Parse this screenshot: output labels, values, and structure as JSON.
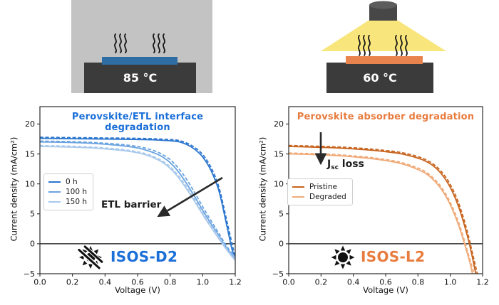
{
  "illustrations": {
    "dark_heat": {
      "temperature": "85 °C",
      "bg_color": "#c3c3c3",
      "plate_color": "#3b3b3b",
      "sample_color": "#2e6da4"
    },
    "light_soak": {
      "temperature": "60 °C",
      "plate_color": "#3b3b3b",
      "sample_color": "#e8834e",
      "cone_color": "#f8e57b",
      "lamp_color": "#474747",
      "lamp_top_color": "#5c5c5c"
    }
  },
  "chart_data": [
    {
      "type": "line",
      "title": "Perovskite/ETL interface degradation",
      "title_color": "#1b6fd8",
      "xlabel": "Voltage (V)",
      "ylabel": "Current density (mA/cm²)",
      "xlim": [
        0,
        1.2
      ],
      "ylim": [
        -5,
        22.9
      ],
      "grid": false,
      "zero_line": true,
      "xticks": [
        0,
        0.2,
        0.4,
        0.6,
        0.8,
        1.0,
        1.2
      ],
      "xtick_labels": [
        "0.0",
        "0.2",
        "0.4",
        "0.6",
        "0.8",
        "1.0",
        "1.2"
      ],
      "yticks": [
        20,
        15,
        10,
        5,
        0,
        -5
      ],
      "ytick_labels": [
        "20",
        "15",
        "10",
        "5",
        "0",
        "−5"
      ],
      "legend_position": "center-left",
      "legend": [
        {
          "label": "0 h",
          "color": "#2b76cf"
        },
        {
          "label": "100 h",
          "color": "#6aa3e0"
        },
        {
          "label": "150 h",
          "color": "#a9c9ec"
        }
      ],
      "annotation_text": "ETL barrier",
      "badge": {
        "label": "ISOS-D2",
        "icon": "crossed-sun-icon",
        "color": "#1b6fd8"
      },
      "series": [
        {
          "name": "0 h forward",
          "color": "#2b76cf",
          "style": "solid",
          "x": [
            0,
            0.1,
            0.2,
            0.3,
            0.4,
            0.5,
            0.6,
            0.7,
            0.8,
            0.85,
            0.9,
            0.95,
            1.0,
            1.05,
            1.1,
            1.15,
            1.18,
            1.2
          ],
          "y": [
            17.6,
            17.58,
            17.55,
            17.52,
            17.49,
            17.46,
            17.42,
            17.35,
            17.2,
            17.05,
            16.6,
            15.8,
            14.5,
            12.3,
            8.8,
            2.8,
            -0.9,
            -2.2
          ]
        },
        {
          "name": "0 h reverse",
          "color": "#2b76cf",
          "style": "dashed",
          "x": [
            0,
            0.1,
            0.2,
            0.3,
            0.4,
            0.5,
            0.6,
            0.7,
            0.8,
            0.85,
            0.9,
            0.95,
            1.0,
            1.05,
            1.1,
            1.15,
            1.19,
            1.2
          ],
          "y": [
            17.78,
            17.76,
            17.73,
            17.7,
            17.67,
            17.64,
            17.6,
            17.53,
            17.4,
            17.26,
            16.85,
            16.1,
            14.9,
            12.8,
            9.4,
            3.6,
            -1.1,
            -1.9
          ]
        },
        {
          "name": "100 h forward",
          "color": "#6aa3e0",
          "style": "solid",
          "x": [
            0,
            0.1,
            0.2,
            0.3,
            0.4,
            0.5,
            0.6,
            0.65,
            0.7,
            0.75,
            0.8,
            0.85,
            0.9,
            0.95,
            1.0,
            1.05,
            1.1,
            1.15,
            1.2
          ],
          "y": [
            17.0,
            16.96,
            16.9,
            16.8,
            16.62,
            16.38,
            16.0,
            15.65,
            15.2,
            14.55,
            13.55,
            12.05,
            10.1,
            7.9,
            5.6,
            3.4,
            1.3,
            -0.8,
            -2.5
          ]
        },
        {
          "name": "100 h reverse",
          "color": "#6aa3e0",
          "style": "dashed",
          "x": [
            0,
            0.1,
            0.2,
            0.3,
            0.4,
            0.5,
            0.6,
            0.65,
            0.7,
            0.75,
            0.8,
            0.85,
            0.9,
            0.95,
            1.0,
            1.05,
            1.1,
            1.15,
            1.2
          ],
          "y": [
            17.15,
            17.11,
            17.05,
            16.95,
            16.8,
            16.58,
            16.25,
            15.95,
            15.55,
            14.95,
            14.05,
            12.65,
            10.8,
            8.6,
            6.2,
            3.9,
            1.7,
            -0.5,
            -2.3
          ]
        },
        {
          "name": "150 h forward",
          "color": "#a9c9ec",
          "style": "solid",
          "x": [
            0,
            0.1,
            0.2,
            0.3,
            0.4,
            0.5,
            0.6,
            0.65,
            0.7,
            0.75,
            0.8,
            0.85,
            0.9,
            0.95,
            1.0,
            1.05,
            1.1,
            1.15,
            1.2
          ],
          "y": [
            16.25,
            16.2,
            16.13,
            16.02,
            15.85,
            15.6,
            15.2,
            14.85,
            14.35,
            13.65,
            12.6,
            11.1,
            9.2,
            7.1,
            4.9,
            2.8,
            0.8,
            -1.1,
            -2.8
          ]
        },
        {
          "name": "150 h reverse",
          "color": "#a9c9ec",
          "style": "dashed",
          "x": [
            0,
            0.1,
            0.2,
            0.3,
            0.4,
            0.5,
            0.6,
            0.65,
            0.7,
            0.75,
            0.8,
            0.85,
            0.9,
            0.95,
            1.0,
            1.05,
            1.1,
            1.15,
            1.2
          ],
          "y": [
            16.4,
            16.35,
            16.28,
            16.17,
            16.0,
            15.76,
            15.37,
            15.03,
            14.55,
            13.87,
            12.85,
            11.4,
            9.55,
            7.45,
            5.25,
            3.1,
            1.1,
            -0.9,
            -2.6
          ]
        }
      ]
    },
    {
      "type": "line",
      "title": "Perovskite absorber degradation",
      "title_color": "#e87c3e",
      "xlabel": "Voltage (V)",
      "ylabel": "Current density (mA/cm²)",
      "xlim": [
        0,
        1.2
      ],
      "ylim": [
        -5,
        22.9
      ],
      "grid": false,
      "zero_line": true,
      "xticks": [
        0,
        0.2,
        0.4,
        0.6,
        0.8,
        1.0,
        1.2
      ],
      "xtick_labels": [
        "0.0",
        "0.2",
        "0.4",
        "0.6",
        "0.8",
        "1.0",
        "1.2"
      ],
      "yticks": [
        20,
        15,
        10,
        5,
        0,
        -5
      ],
      "ytick_labels": [
        "20",
        "15",
        "10",
        "5",
        "0",
        "−5"
      ],
      "legend_position": "center-left",
      "legend": [
        {
          "label": "Pristine",
          "color": "#c8641e"
        },
        {
          "label": "Degraded",
          "color": "#f0aa78"
        }
      ],
      "annotation_jsc": {
        "base": "J",
        "sub": "sc",
        "rest": " loss"
      },
      "badge": {
        "label": "ISOS-L2",
        "icon": "sun-icon",
        "color": "#e87c3e"
      },
      "series": [
        {
          "name": "Pristine forward",
          "color": "#c8641e",
          "style": "solid",
          "x": [
            0,
            0.1,
            0.2,
            0.3,
            0.4,
            0.5,
            0.6,
            0.7,
            0.8,
            0.85,
            0.9,
            0.95,
            1.0,
            1.05,
            1.1,
            1.13,
            1.16
          ],
          "y": [
            16.25,
            16.18,
            16.1,
            16.0,
            15.85,
            15.65,
            15.38,
            15.0,
            14.3,
            13.75,
            12.9,
            11.5,
            9.4,
            6.3,
            1.9,
            -1.4,
            -5.3
          ]
        },
        {
          "name": "Pristine reverse",
          "color": "#c8641e",
          "style": "dashed",
          "x": [
            0,
            0.1,
            0.2,
            0.3,
            0.4,
            0.5,
            0.6,
            0.7,
            0.8,
            0.85,
            0.9,
            0.95,
            1.0,
            1.05,
            1.1,
            1.14,
            1.17
          ],
          "y": [
            16.42,
            16.35,
            16.27,
            16.17,
            16.03,
            15.84,
            15.58,
            15.22,
            14.55,
            14.02,
            13.2,
            11.9,
            9.9,
            6.9,
            2.6,
            -1.9,
            -5.3
          ]
        },
        {
          "name": "Degraded forward",
          "color": "#f0aa78",
          "style": "solid",
          "x": [
            0,
            0.1,
            0.2,
            0.3,
            0.4,
            0.5,
            0.6,
            0.7,
            0.8,
            0.85,
            0.9,
            0.95,
            1.0,
            1.05,
            1.09,
            1.12,
            1.14
          ],
          "y": [
            15.0,
            14.94,
            14.85,
            14.72,
            14.52,
            14.26,
            13.9,
            13.35,
            12.4,
            11.7,
            10.55,
            8.9,
            6.5,
            3.2,
            -0.2,
            -3.0,
            -5.4
          ]
        },
        {
          "name": "Degraded reverse",
          "color": "#f0aa78",
          "style": "dashed",
          "x": [
            0,
            0.1,
            0.2,
            0.3,
            0.4,
            0.5,
            0.6,
            0.7,
            0.8,
            0.85,
            0.9,
            0.95,
            1.0,
            1.05,
            1.09,
            1.12,
            1.15
          ],
          "y": [
            15.15,
            15.09,
            15.0,
            14.88,
            14.68,
            14.43,
            14.08,
            13.55,
            12.65,
            11.97,
            10.85,
            9.25,
            6.9,
            3.7,
            0.3,
            -2.5,
            -5.2
          ]
        }
      ]
    }
  ]
}
